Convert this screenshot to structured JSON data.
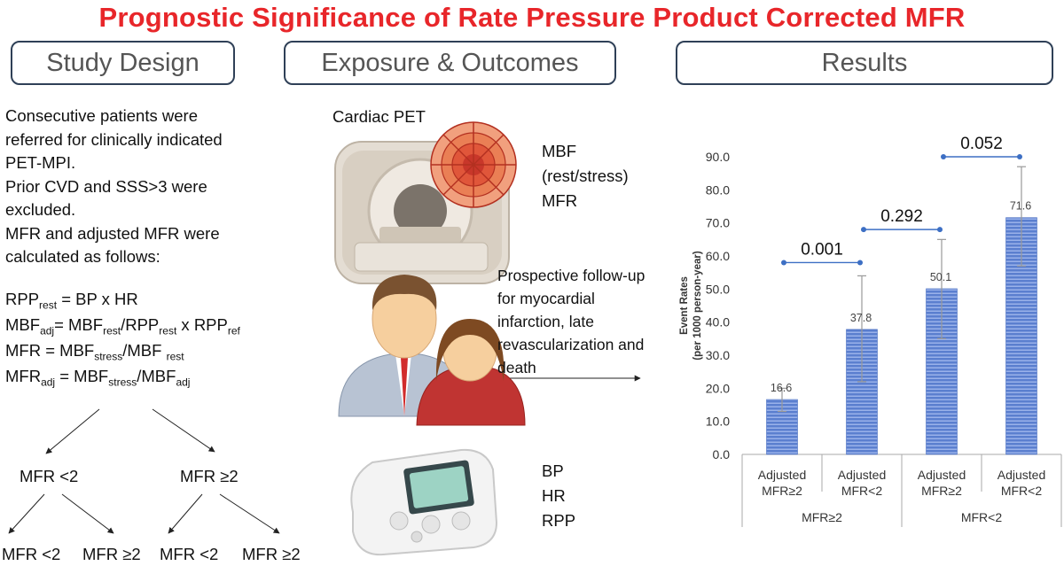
{
  "title": "Prognostic Significance of Rate Pressure Product Corrected MFR",
  "headers": {
    "study_design": "Study Design",
    "exposure": "Exposure & Outcomes",
    "results": "Results"
  },
  "study": {
    "lines": [
      "Consecutive patients were",
      "referred for clinically indicated",
      "PET-MPI.",
      "Prior CVD and SSS>3 were",
      "excluded.",
      "MFR and adjusted MFR were",
      "calculated as follows:"
    ],
    "f1": {
      "a": "RPP",
      "a_sub": "rest",
      "b": " = BP x HR"
    },
    "f2": {
      "a": "MBF",
      "a_sub": "adj",
      "b": "= MBF",
      "b_sub": "rest",
      "c": "/RPP",
      "c_sub": "rest",
      "d": " x RPP",
      "d_sub": "ref"
    },
    "f3": {
      "a": "MFR = MBF",
      "a_sub": "stress",
      "b": "/MBF ",
      "b_sub": "rest"
    },
    "f4": {
      "a": "MFR",
      "a_sub": "adj",
      "b": " = MBF",
      "b_sub": "stress",
      "c": "/MBF",
      "c_sub": "adj"
    },
    "tree": {
      "left": "MFR <2",
      "right": "MFR ≥2",
      "leaves": [
        "MFR <2",
        "MFR ≥2",
        "MFR <2",
        "MFR ≥2"
      ]
    }
  },
  "exposure": {
    "pet_label": "Cardiac PET",
    "mbf_lines": [
      "MBF",
      "(rest/stress)",
      "MFR"
    ],
    "followup_lines": [
      "Prospective follow-up",
      "for myocardial",
      "infarction, late",
      "revascularization and",
      "death"
    ],
    "bp_lines": [
      "BP",
      "HR",
      "RPP"
    ]
  },
  "chart_data": {
    "type": "bar",
    "ylabel": "Event Rates",
    "ylabel_sub": "(per 1000 person-year)",
    "ylim": [
      0,
      90
    ],
    "yticks": [
      "0.0",
      "10.0",
      "20.0",
      "30.0",
      "40.0",
      "50.0",
      "60.0",
      "70.0",
      "80.0",
      "90.0"
    ],
    "categories": [
      {
        "line1": "Adjusted",
        "line2": "MFR≥2"
      },
      {
        "line1": "Adjusted",
        "line2": "MFR<2"
      },
      {
        "line1": "Adjusted",
        "line2": "MFR≥2"
      },
      {
        "line1": "Adjusted",
        "line2": "MFR<2"
      }
    ],
    "groups": [
      "MFR≥2",
      "MFR<2"
    ],
    "values": [
      16.6,
      37.8,
      50.1,
      71.6
    ],
    "value_labels": [
      "16.6",
      "37.8",
      "50.1",
      "71.6"
    ],
    "errors": [
      [
        13.0,
        20.0
      ],
      [
        22.0,
        54.0
      ],
      [
        35.0,
        65.0
      ],
      [
        57.0,
        87.0
      ]
    ],
    "comparisons": [
      {
        "from": 0,
        "to": 1,
        "p": "0.001",
        "y": 58.0
      },
      {
        "from": 1,
        "to": 2,
        "p": "0.292",
        "y": 68.0
      },
      {
        "from": 2,
        "to": 3,
        "p": "0.052",
        "y": 90.0
      }
    ],
    "colors": {
      "bar": "#5b7fcf",
      "bar_stripe": "#a9bff0",
      "comparison": "#3d6fc4",
      "error": "#999999"
    }
  }
}
